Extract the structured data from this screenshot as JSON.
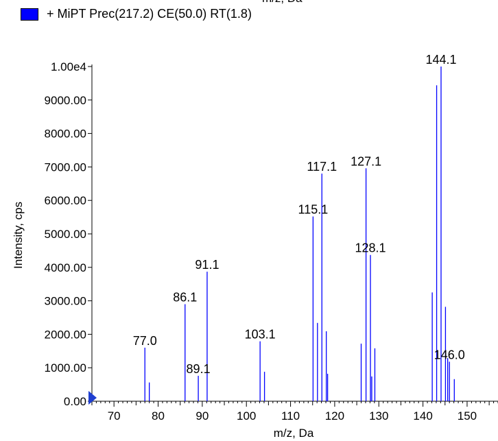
{
  "cut_text": "m/z, Da",
  "legend": {
    "label": "+ MiPT Prec(217.2) CE(50.0) RT(1.8)"
  },
  "colors": {
    "bars": "#0000ff",
    "legend_fill": "#0000ff",
    "axis": "#000000",
    "marker": "#1f3fd0"
  },
  "chart_data": {
    "type": "bar",
    "xlabel": "m/z, Da",
    "ylabel": "Intensity, cps",
    "xlim": [
      65,
      157
    ],
    "ylim": [
      0,
      10000
    ],
    "x_ticks": [
      {
        "value": 70,
        "label": "70"
      },
      {
        "value": 80,
        "label": "80"
      },
      {
        "value": 90,
        "label": "90"
      },
      {
        "value": 100,
        "label": "100"
      },
      {
        "value": 110,
        "label": "110"
      },
      {
        "value": 120,
        "label": "120"
      },
      {
        "value": 130,
        "label": "130"
      },
      {
        "value": 140,
        "label": "140"
      },
      {
        "value": 150,
        "label": "150"
      }
    ],
    "y_ticks": [
      {
        "value": 0,
        "label": "0.00"
      },
      {
        "value": 1000,
        "label": "1000.00"
      },
      {
        "value": 2000,
        "label": "2000.00"
      },
      {
        "value": 3000,
        "label": "3000.00"
      },
      {
        "value": 4000,
        "label": "4000.00"
      },
      {
        "value": 5000,
        "label": "5000.00"
      },
      {
        "value": 6000,
        "label": "6000.00"
      },
      {
        "value": 7000,
        "label": "7000.00"
      },
      {
        "value": 8000,
        "label": "8000.00"
      },
      {
        "value": 9000,
        "label": "9000.00"
      },
      {
        "value": 10000,
        "label": "1.00e4"
      }
    ],
    "peaks": [
      {
        "mz": 77.0,
        "intensity": 1600
      },
      {
        "mz": 78.0,
        "intensity": 560
      },
      {
        "mz": 86.1,
        "intensity": 2900
      },
      {
        "mz": 89.1,
        "intensity": 760
      },
      {
        "mz": 91.1,
        "intensity": 3870
      },
      {
        "mz": 103.1,
        "intensity": 1790
      },
      {
        "mz": 104.1,
        "intensity": 880
      },
      {
        "mz": 115.1,
        "intensity": 5520
      },
      {
        "mz": 116.1,
        "intensity": 2340
      },
      {
        "mz": 117.1,
        "intensity": 6800
      },
      {
        "mz": 118.1,
        "intensity": 2090
      },
      {
        "mz": 118.4,
        "intensity": 820
      },
      {
        "mz": 126.0,
        "intensity": 1720
      },
      {
        "mz": 127.1,
        "intensity": 6960
      },
      {
        "mz": 128.1,
        "intensity": 4370
      },
      {
        "mz": 128.4,
        "intensity": 740
      },
      {
        "mz": 129.1,
        "intensity": 1580
      },
      {
        "mz": 142.1,
        "intensity": 3250
      },
      {
        "mz": 143.1,
        "intensity": 9440
      },
      {
        "mz": 144.1,
        "intensity": 10000
      },
      {
        "mz": 145.1,
        "intensity": 2820
      },
      {
        "mz": 145.6,
        "intensity": 1290
      },
      {
        "mz": 146.0,
        "intensity": 1180
      },
      {
        "mz": 147.1,
        "intensity": 660
      }
    ],
    "peak_labels": [
      {
        "mz": 77.0,
        "intensity": 1600,
        "text": "77.0"
      },
      {
        "mz": 86.1,
        "intensity": 2900,
        "text": "86.1"
      },
      {
        "mz": 89.1,
        "intensity": 760,
        "text": "89.1"
      },
      {
        "mz": 91.1,
        "intensity": 3870,
        "text": "91.1"
      },
      {
        "mz": 103.1,
        "intensity": 1790,
        "text": "103.1"
      },
      {
        "mz": 115.1,
        "intensity": 5520,
        "text": "115.1"
      },
      {
        "mz": 117.1,
        "intensity": 6800,
        "text": "117.1"
      },
      {
        "mz": 127.1,
        "intensity": 6960,
        "text": "127.1"
      },
      {
        "mz": 128.1,
        "intensity": 4370,
        "text": "128.1"
      },
      {
        "mz": 144.1,
        "intensity": 10000,
        "text": "144.1"
      },
      {
        "mz": 146.0,
        "intensity": 1180,
        "text": "146.0"
      }
    ]
  }
}
